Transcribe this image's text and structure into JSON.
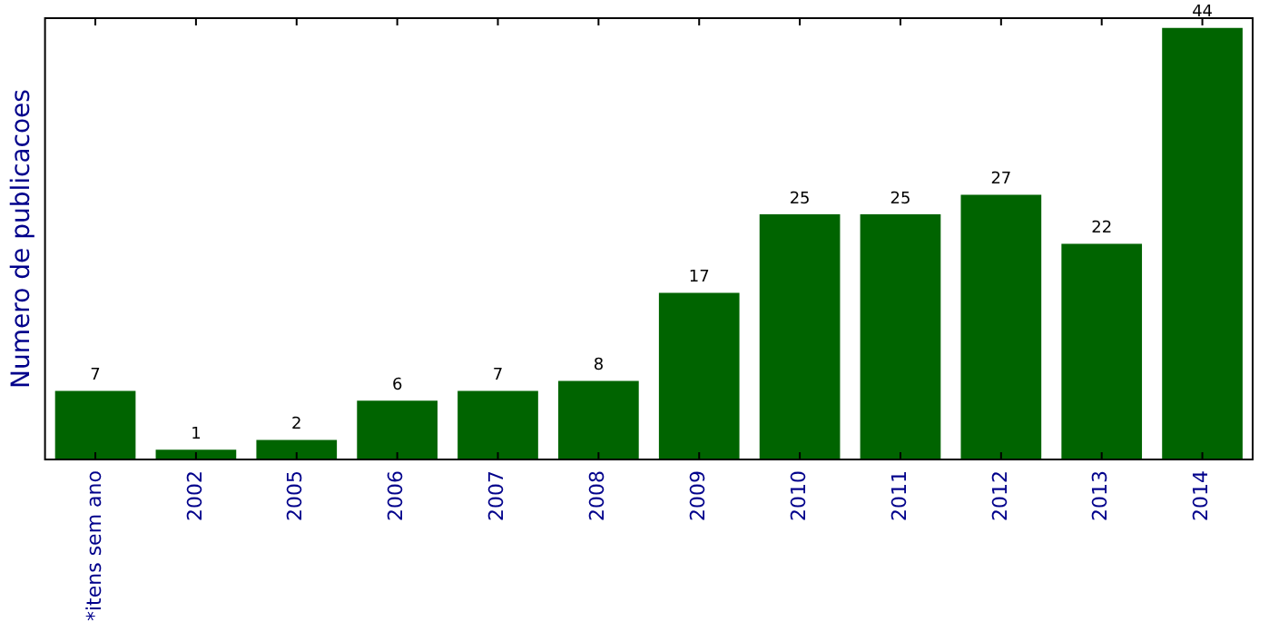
{
  "chart_data": {
    "type": "bar",
    "ylabel": "Numero de publicacoes",
    "categories": [
      "*itens sem ano",
      "2002",
      "2005",
      "2006",
      "2007",
      "2008",
      "2009",
      "2010",
      "2011",
      "2012",
      "2013",
      "2014"
    ],
    "values": [
      7,
      1,
      2,
      6,
      7,
      8,
      17,
      25,
      25,
      27,
      22,
      44
    ],
    "color": "#006400",
    "data_labels": true,
    "grid": false,
    "legend": false,
    "tick_labels": "x"
  }
}
